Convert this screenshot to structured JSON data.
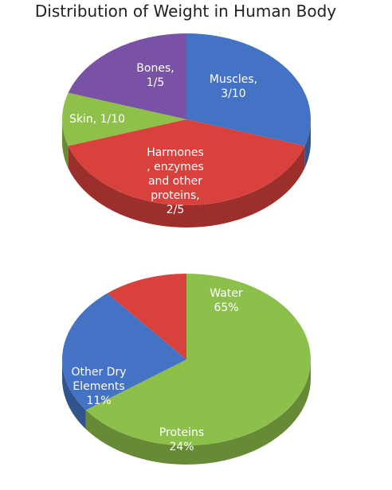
{
  "title": "Distribution of Weight in Human Body",
  "chart_data": [
    {
      "type": "pie",
      "slices": [
        {
          "label": "Muscles",
          "value_text": "3/10",
          "value": 0.3,
          "color": "#4473c5"
        },
        {
          "label": "Harmones , enzymes and other proteins",
          "value_text": "2/5",
          "value": 0.4,
          "color": "#d9413c"
        },
        {
          "label": "Skin",
          "value_text": "1/10",
          "value": 0.1,
          "color": "#8fc04a"
        },
        {
          "label": "Bones",
          "value_text": "1/5",
          "value": 0.2,
          "color": "#7a52a5"
        }
      ]
    },
    {
      "type": "pie",
      "slices": [
        {
          "label": "Water",
          "value_text": "65%",
          "value": 65,
          "color": "#8dc04a"
        },
        {
          "label": "Proteins",
          "value_text": "24%",
          "value": 24,
          "color": "#4473c5"
        },
        {
          "label": "Other Dry Elements",
          "value_text": "11%",
          "value": 11,
          "color": "#d9413c"
        }
      ]
    }
  ]
}
